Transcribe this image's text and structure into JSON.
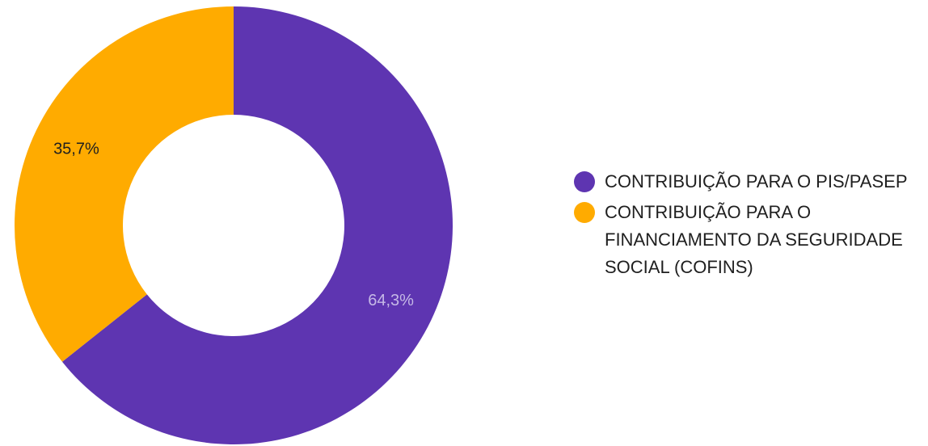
{
  "chart_data": {
    "type": "pie",
    "donut": true,
    "title": "",
    "categories": [
      "CONTRIBUIÇÃO PARA O PIS/PASEP",
      "CONTRIBUIÇÃO PARA O FINANCIAMENTO DA SEGURIDADE SOCIAL (COFINS)"
    ],
    "values": [
      64.3,
      35.7
    ],
    "data_labels": [
      "64,3%",
      "35,7%"
    ],
    "colors": [
      "#5e35b1",
      "#ffab00"
    ],
    "label_colors": [
      "#c5b8e6",
      "#1f1f1f"
    ],
    "legend_position": "right"
  },
  "legend": {
    "items": [
      {
        "label": "CONTRIBUIÇÃO PARA O PIS/PASEP",
        "color": "#5e35b1"
      },
      {
        "label": "CONTRIBUIÇÃO PARA O FINANCIAMENTO DA SEGURIDADE SOCIAL (COFINS)",
        "color": "#ffab00"
      }
    ]
  }
}
